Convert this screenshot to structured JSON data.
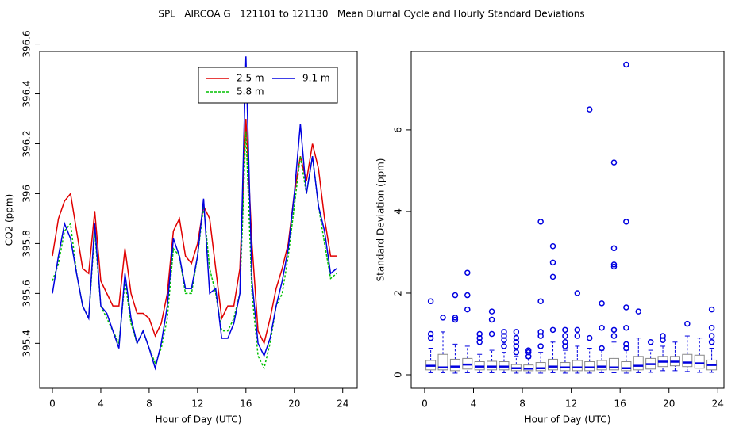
{
  "title": "SPL   AIRCOA G   121101 to 121130   Mean Diurnal Cycle and Hourly Standard Deviations",
  "chart_data": [
    {
      "type": "line",
      "x_label": "Hour of Day (UTC)",
      "y_label": "CO2 (ppm)",
      "x": [
        0,
        0.5,
        1,
        1.5,
        2,
        2.5,
        3,
        3.5,
        4,
        4.5,
        5,
        5.5,
        6,
        6.5,
        7,
        7.5,
        8,
        8.5,
        9,
        9.5,
        10,
        10.5,
        11,
        11.5,
        12,
        12.5,
        13,
        13.5,
        14,
        14.5,
        15,
        15.5,
        16,
        16.5,
        17,
        17.5,
        18,
        18.5,
        19,
        19.5,
        20,
        20.5,
        21,
        21.5,
        22,
        22.5,
        23,
        23.5
      ],
      "series": [
        {
          "name": "2.5 m",
          "color": "#e00000",
          "dash": false,
          "values": [
            395.75,
            395.9,
            395.97,
            396.0,
            395.85,
            395.7,
            395.68,
            395.93,
            395.65,
            395.6,
            395.55,
            395.55,
            395.78,
            395.6,
            395.52,
            395.52,
            395.5,
            395.43,
            395.48,
            395.6,
            395.85,
            395.9,
            395.75,
            395.72,
            395.8,
            395.95,
            395.9,
            395.7,
            395.5,
            395.55,
            395.55,
            395.7,
            396.3,
            395.8,
            395.45,
            395.4,
            395.5,
            395.62,
            395.7,
            395.8,
            396.0,
            396.15,
            396.05,
            396.2,
            396.1,
            395.9,
            395.75,
            395.75
          ]
        },
        {
          "name": "5.8 m",
          "color": "#00c000",
          "dash": true,
          "values": [
            395.65,
            395.72,
            395.85,
            395.88,
            395.68,
            395.55,
            395.5,
            395.85,
            395.55,
            395.5,
            395.45,
            395.4,
            395.65,
            395.48,
            395.4,
            395.45,
            395.38,
            395.32,
            395.38,
            395.5,
            395.78,
            395.75,
            395.6,
            395.6,
            395.75,
            395.95,
            395.7,
            395.6,
            395.45,
            395.45,
            395.5,
            395.6,
            396.25,
            395.6,
            395.35,
            395.3,
            395.4,
            395.55,
            395.6,
            395.75,
            395.95,
            396.15,
            396.0,
            396.15,
            395.95,
            395.8,
            395.66,
            395.68
          ]
        },
        {
          "name": "9.1 m",
          "color": "#0000e0",
          "dash": false,
          "values": [
            395.6,
            395.75,
            395.88,
            395.82,
            395.68,
            395.55,
            395.5,
            395.88,
            395.55,
            395.52,
            395.45,
            395.38,
            395.68,
            395.5,
            395.4,
            395.45,
            395.38,
            395.3,
            395.4,
            395.55,
            395.82,
            395.75,
            395.62,
            395.62,
            395.75,
            395.98,
            395.6,
            395.62,
            395.42,
            395.42,
            395.48,
            395.6,
            396.55,
            395.65,
            395.4,
            395.35,
            395.42,
            395.55,
            395.65,
            395.78,
            396.0,
            396.28,
            396.0,
            396.15,
            395.95,
            395.85,
            395.68,
            395.7
          ]
        }
      ],
      "xlim": [
        -1.05,
        25.2
      ],
      "ylim": [
        395.22,
        396.57
      ],
      "xticks": [
        0,
        4,
        8,
        12,
        16,
        20,
        24
      ],
      "yticks": [
        395.4,
        395.6,
        395.8,
        396.0,
        396.2,
        396.4,
        396.6
      ]
    },
    {
      "type": "box",
      "x_label": "Hour of Day (UTC)",
      "y_label": "Standard Deviation (ppm)",
      "color": "#0000e0",
      "x": [
        0.5,
        1.5,
        2.5,
        3.5,
        4.5,
        5.5,
        6.5,
        7.5,
        8.5,
        9.5,
        10.5,
        11.5,
        12.5,
        13.5,
        14.5,
        15.5,
        16.5,
        17.5,
        18.5,
        19.5,
        20.5,
        21.5,
        22.5,
        23.5
      ],
      "whisker_low": [
        0.05,
        0.05,
        0.04,
        0.05,
        0.05,
        0.05,
        0.05,
        0.04,
        0.04,
        0.04,
        0.05,
        0.04,
        0.04,
        0.04,
        0.05,
        0.05,
        0.04,
        0.05,
        0.06,
        0.1,
        0.1,
        0.08,
        0.06,
        0.06
      ],
      "q1": [
        0.12,
        0.12,
        0.1,
        0.14,
        0.12,
        0.12,
        0.12,
        0.1,
        0.1,
        0.1,
        0.12,
        0.1,
        0.1,
        0.1,
        0.12,
        0.12,
        0.1,
        0.12,
        0.14,
        0.2,
        0.22,
        0.2,
        0.16,
        0.12
      ],
      "median": [
        0.22,
        0.18,
        0.2,
        0.25,
        0.2,
        0.2,
        0.2,
        0.16,
        0.15,
        0.16,
        0.2,
        0.18,
        0.18,
        0.18,
        0.2,
        0.18,
        0.16,
        0.22,
        0.26,
        0.32,
        0.32,
        0.3,
        0.28,
        0.24
      ],
      "q3": [
        0.35,
        0.5,
        0.38,
        0.4,
        0.32,
        0.33,
        0.32,
        0.25,
        0.24,
        0.3,
        0.38,
        0.3,
        0.35,
        0.32,
        0.35,
        0.4,
        0.32,
        0.45,
        0.4,
        0.45,
        0.45,
        0.5,
        0.48,
        0.36
      ],
      "whisker_high": [
        0.65,
        1.05,
        0.75,
        0.7,
        0.5,
        0.6,
        0.55,
        0.45,
        0.4,
        0.55,
        0.8,
        0.6,
        0.7,
        0.65,
        0.6,
        0.8,
        0.6,
        0.9,
        0.6,
        0.7,
        0.8,
        0.95,
        0.9,
        0.65
      ],
      "outliers": [
        [
          0.9,
          1.0,
          1.8
        ],
        [
          1.4
        ],
        [
          1.35,
          1.4,
          1.95
        ],
        [
          1.6,
          1.95,
          2.5
        ],
        [
          0.8,
          0.9,
          1.0
        ],
        [
          1.0,
          1.35,
          1.55
        ],
        [
          0.7,
          0.85,
          0.95,
          1.05
        ],
        [
          0.55,
          0.7,
          0.8,
          0.9,
          1.05
        ],
        [
          0.45,
          0.55,
          0.6
        ],
        [
          0.7,
          0.95,
          1.05,
          1.8,
          3.75
        ],
        [
          1.1,
          2.4,
          2.75,
          3.15
        ],
        [
          0.7,
          0.8,
          0.95,
          1.1
        ],
        [
          0.95,
          1.1,
          2.0
        ],
        [
          0.9,
          6.5
        ],
        [
          0.65,
          1.15,
          1.75
        ],
        [
          0.95,
          1.1,
          2.65,
          2.7,
          3.1,
          5.2
        ],
        [
          0.65,
          0.75,
          1.15,
          1.65,
          3.75,
          7.6
        ],
        [
          1.55
        ],
        [
          0.8
        ],
        [
          0.85,
          0.95
        ],
        [],
        [
          1.25
        ],
        [],
        [
          0.8,
          0.95,
          1.15,
          1.6
        ]
      ],
      "xlim": [
        -1.1,
        24.5
      ],
      "ylim": [
        -0.33,
        7.92
      ],
      "xticks": [
        0,
        4,
        8,
        12,
        16,
        20,
        24
      ],
      "yticks": [
        0,
        2,
        4,
        6
      ]
    }
  ]
}
